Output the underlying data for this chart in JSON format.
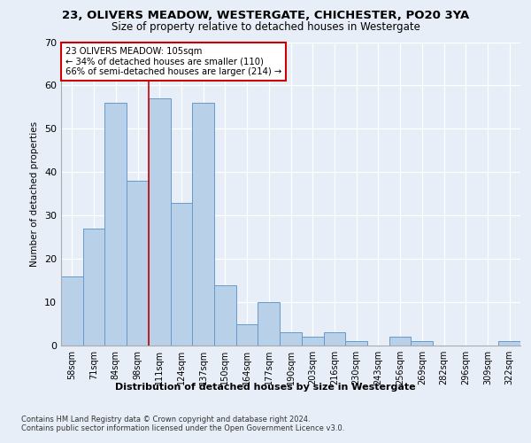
{
  "title1": "23, OLIVERS MEADOW, WESTERGATE, CHICHESTER, PO20 3YA",
  "title2": "Size of property relative to detached houses in Westergate",
  "xlabel": "Distribution of detached houses by size in Westergate",
  "ylabel": "Number of detached properties",
  "categories": [
    "58sqm",
    "71sqm",
    "84sqm",
    "98sqm",
    "111sqm",
    "124sqm",
    "137sqm",
    "150sqm",
    "164sqm",
    "177sqm",
    "190sqm",
    "203sqm",
    "216sqm",
    "230sqm",
    "243sqm",
    "256sqm",
    "269sqm",
    "282sqm",
    "296sqm",
    "309sqm",
    "322sqm"
  ],
  "values": [
    16,
    27,
    56,
    38,
    57,
    33,
    56,
    14,
    5,
    10,
    3,
    2,
    3,
    1,
    0,
    2,
    1,
    0,
    0,
    0,
    1
  ],
  "bar_color": "#b8d0e8",
  "bar_edge_color": "#6699cc",
  "vline_x": 3.5,
  "vline_color": "#cc0000",
  "annotation_text": "23 OLIVERS MEADOW: 105sqm\n← 34% of detached houses are smaller (110)\n66% of semi-detached houses are larger (214) →",
  "annotation_box_color": "#ffffff",
  "annotation_box_edge": "#cc0000",
  "ylim": [
    0,
    70
  ],
  "yticks": [
    0,
    10,
    20,
    30,
    40,
    50,
    60,
    70
  ],
  "footer1": "Contains HM Land Registry data © Crown copyright and database right 2024.",
  "footer2": "Contains public sector information licensed under the Open Government Licence v3.0.",
  "bg_color": "#e8eef8",
  "plot_bg": "#e8eef8"
}
